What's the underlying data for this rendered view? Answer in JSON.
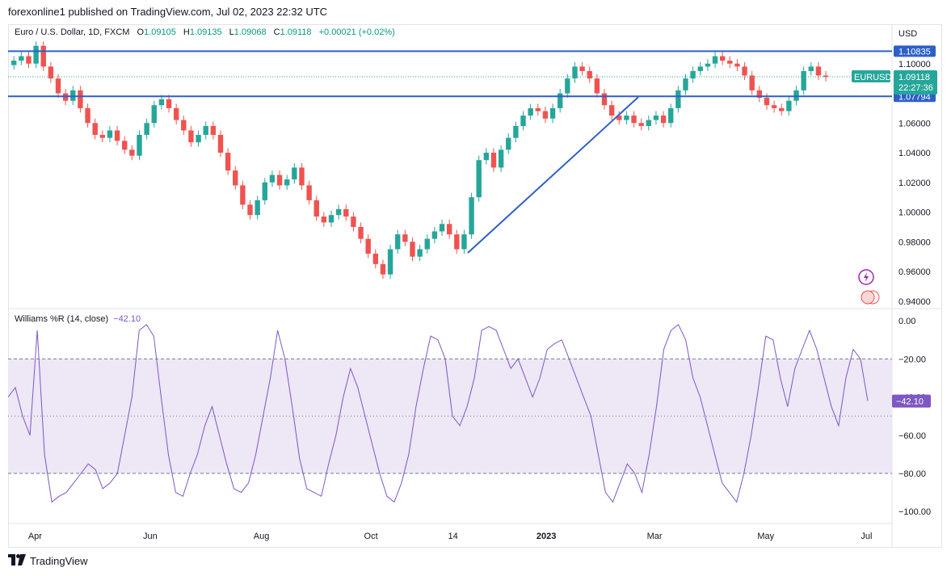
{
  "header": {
    "published": "forexonline1 published on TradingView.com, Jul 02, 2023 22:32 UTC"
  },
  "legend": {
    "symbol": "Euro / U.S. Dollar, 1D, FXCM",
    "o_label": "O",
    "o_value": "1.09105",
    "h_label": "H",
    "h_value": "1.09135",
    "l_label": "L",
    "l_value": "1.09068",
    "c_label": "C",
    "c_value": "1.09118",
    "change": "+0.00021 (+0.02%)"
  },
  "currency": "USD",
  "indicator": {
    "name": "Williams %R (14, close)",
    "value": "−42.10"
  },
  "footer": {
    "brand": "TradingView"
  },
  "colors": {
    "up": "#26a69a",
    "down": "#ef5350",
    "line": "#2d5fc9",
    "wr": "#7e57c2",
    "wr_band": "#ede7f6"
  },
  "chart_data": [
    {
      "type": "candlestick",
      "symbol_badge": "EURUSD",
      "ylim": [
        0.935,
        1.12
      ],
      "y_ticks": [
        "1.10000",
        "1.06000",
        "1.04000",
        "1.02000",
        "1.00000",
        "0.98000",
        "0.96000",
        "0.94000"
      ],
      "price_tags": {
        "upper": "1.10835",
        "last": "1.09118",
        "countdown": "22:27:36",
        "lower": "1.07794"
      },
      "horizontal_levels": [
        1.10835,
        1.07794
      ],
      "trendline": [
        [
          0.52,
          0.9725
        ],
        [
          0.713,
          1.0775
        ]
      ],
      "x_ticks": [
        "Apr",
        "Jun",
        "Aug",
        "Oct",
        "14",
        "2023",
        "Mar",
        "May",
        "Jul"
      ],
      "close_series_approx": [
        1.102,
        1.105,
        1.1,
        1.112,
        1.098,
        1.09,
        1.08,
        1.075,
        1.082,
        1.07,
        1.06,
        1.052,
        1.05,
        1.055,
        1.048,
        1.042,
        1.038,
        1.052,
        1.06,
        1.072,
        1.076,
        1.07,
        1.062,
        1.055,
        1.047,
        1.052,
        1.058,
        1.052,
        1.04,
        1.028,
        1.018,
        1.005,
        0.998,
        1.008,
        1.02,
        1.025,
        1.018,
        1.022,
        1.03,
        1.018,
        1.008,
        0.997,
        0.993,
        0.998,
        1.002,
        0.997,
        0.99,
        0.982,
        0.972,
        0.965,
        0.958,
        0.975,
        0.985,
        0.98,
        0.97,
        0.975,
        0.982,
        0.987,
        0.992,
        0.985,
        0.975,
        0.985,
        1.01,
        1.035,
        1.04,
        1.03,
        1.042,
        1.05,
        1.058,
        1.065,
        1.07,
        1.068,
        1.063,
        1.07,
        1.08,
        1.09,
        1.098,
        1.095,
        1.09,
        1.08,
        1.072,
        1.065,
        1.062,
        1.065,
        1.06,
        1.058,
        1.062,
        1.065,
        1.06,
        1.07,
        1.082,
        1.09,
        1.095,
        1.098,
        1.1,
        1.105,
        1.102,
        1.1,
        1.098,
        1.092,
        1.082,
        1.077,
        1.072,
        1.07,
        1.068,
        1.075,
        1.082,
        1.095,
        1.098,
        1.092,
        1.091
      ]
    },
    {
      "type": "line",
      "name": "Williams %R (14, close)",
      "ylim": [
        -105,
        3
      ],
      "y_ticks": [
        "0.00",
        "−20.00",
        "−40.00",
        "−60.00",
        "−80.00",
        "−100.00"
      ],
      "bands": [
        -20,
        -80
      ],
      "midline": -50,
      "last_value": -42.1,
      "series_approx": [
        -40,
        -35,
        -50,
        -60,
        -5,
        -70,
        -95,
        -92,
        -90,
        -85,
        -80,
        -75,
        -78,
        -88,
        -85,
        -80,
        -60,
        -40,
        -5,
        -2,
        -8,
        -40,
        -70,
        -90,
        -92,
        -80,
        -70,
        -55,
        -45,
        -60,
        -75,
        -88,
        -90,
        -85,
        -70,
        -50,
        -30,
        -5,
        -20,
        -45,
        -72,
        -88,
        -90,
        -92,
        -75,
        -60,
        -40,
        -25,
        -35,
        -50,
        -65,
        -80,
        -92,
        -95,
        -85,
        -70,
        -45,
        -25,
        -8,
        -10,
        -20,
        -50,
        -55,
        -45,
        -30,
        -5,
        -3,
        -5,
        -15,
        -25,
        -20,
        -30,
        -40,
        -30,
        -15,
        -12,
        -10,
        -20,
        -30,
        -40,
        -50,
        -70,
        -90,
        -95,
        -85,
        -75,
        -80,
        -90,
        -70,
        -45,
        -15,
        -5,
        -2,
        -10,
        -30,
        -40,
        -55,
        -70,
        -85,
        -90,
        -95,
        -80,
        -60,
        -35,
        -8,
        -10,
        -30,
        -45,
        -25,
        -15,
        -5,
        -15,
        -30,
        -45,
        -55,
        -30,
        -15,
        -20,
        -42
      ]
    }
  ]
}
